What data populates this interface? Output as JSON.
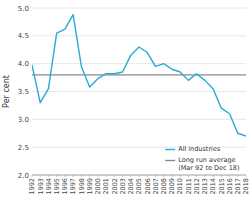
{
  "chart_data": {
    "type": "line",
    "title": "",
    "ylabel": "Per cent",
    "x": [
      1992,
      1993,
      1994,
      1995,
      1996,
      1997,
      1998,
      1999,
      2000,
      2001,
      2002,
      2003,
      2004,
      2005,
      2006,
      2007,
      2008,
      2009,
      2010,
      2011,
      2012,
      2013,
      2014,
      2015,
      2016,
      2017,
      2018
    ],
    "series": [
      {
        "name": "All industries",
        "color": "#29ABD4",
        "values": [
          3.98,
          3.3,
          3.55,
          4.55,
          4.62,
          4.88,
          3.95,
          3.58,
          3.73,
          3.82,
          3.82,
          3.85,
          4.15,
          4.3,
          4.2,
          3.95,
          4.0,
          3.9,
          3.85,
          3.7,
          3.82,
          3.7,
          3.55,
          3.2,
          3.1,
          2.75,
          2.7
        ]
      }
    ],
    "reference_line": {
      "name": "Long run average\n(Mar 92 to Dec 18)",
      "color": "#888888",
      "value": 3.8
    },
    "xlim": [
      1992,
      2018
    ],
    "xticks": [
      1992,
      1993,
      1994,
      1995,
      1996,
      1997,
      1998,
      1999,
      2000,
      2001,
      2002,
      2003,
      2004,
      2005,
      2006,
      2007,
      2008,
      2009,
      2010,
      2011,
      2012,
      2013,
      2014,
      2015,
      2016,
      2017,
      2018
    ],
    "ylim": [
      2.0,
      5.0
    ],
    "yticks": [
      {
        "value": 2.0,
        "label": "2.0"
      },
      {
        "value": 2.5,
        "label": "2.5"
      },
      {
        "value": 3.0,
        "label": "3.0"
      },
      {
        "value": 3.5,
        "label": "3.5"
      },
      {
        "value": 4.0,
        "label": "4.0"
      },
      {
        "value": 4.5,
        "label": "4.5"
      },
      {
        "value": 5.0,
        "label": "5.0"
      }
    ],
    "grid": true,
    "legend": "lower right"
  }
}
